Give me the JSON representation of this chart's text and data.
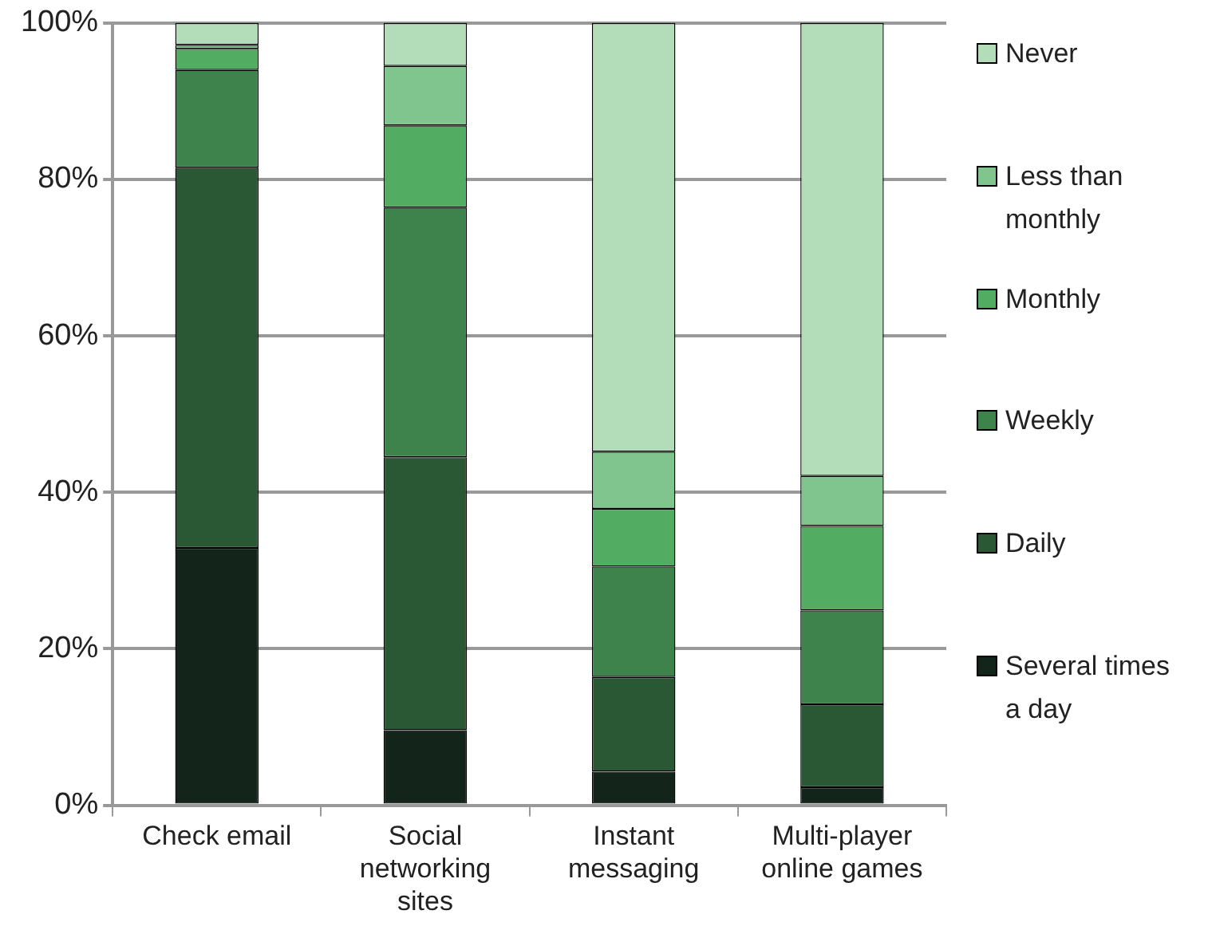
{
  "chart_data": {
    "type": "bar",
    "stacked": true,
    "categories": [
      "Check email",
      "Social networking sites",
      "Instant messaging",
      "Multi-player online games"
    ],
    "series": [
      {
        "name": "Several times a day",
        "color": "#13251a",
        "values": [
          32.9,
          9.6,
          4.3,
          2.3
        ]
      },
      {
        "name": "Daily",
        "color": "#2a5734",
        "values": [
          48.6,
          34.9,
          12.1,
          10.6
        ]
      },
      {
        "name": "Weekly",
        "color": "#3d834b",
        "values": [
          12.5,
          31.9,
          14.1,
          12.0
        ]
      },
      {
        "name": "Monthly",
        "color": "#52ad62",
        "values": [
          2.7,
          10.5,
          7.4,
          10.8
        ]
      },
      {
        "name": "Less than monthly",
        "color": "#80c58e",
        "values": [
          0.5,
          7.6,
          7.3,
          6.4
        ]
      },
      {
        "name": "Never",
        "color": "#b3ddb9",
        "values": [
          2.8,
          5.5,
          54.8,
          57.9
        ]
      }
    ],
    "ylim": [
      0,
      100
    ],
    "yticks": [
      {
        "value": 0,
        "label": "0%"
      },
      {
        "value": 20,
        "label": "20%"
      },
      {
        "value": 40,
        "label": "40%"
      },
      {
        "value": 60,
        "label": "60%"
      },
      {
        "value": 80,
        "label": "80%"
      },
      {
        "value": 100,
        "label": "100%"
      }
    ],
    "grid": "y",
    "legend": "right"
  }
}
